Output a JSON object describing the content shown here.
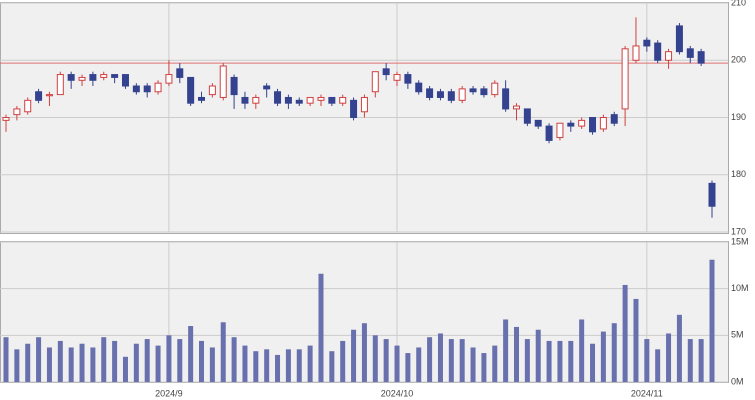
{
  "chart_data": [
    {
      "type": "candlestick",
      "open": [
        189.5,
        190.5,
        191,
        194.5,
        193.8,
        194,
        197.5,
        196.5,
        197.5,
        197,
        197.5,
        197.5,
        195.5,
        195.5,
        194.5,
        196,
        198.5,
        197,
        193.5,
        194,
        193.5,
        197,
        193.5,
        192.5,
        195.5,
        194.5,
        193.5,
        193,
        192.5,
        193,
        193.5,
        192.5,
        193,
        191,
        194.5,
        198.5,
        196.5,
        197.5,
        196,
        195,
        194.5,
        194.5,
        193,
        195,
        195,
        194,
        195,
        191.5,
        191.5,
        189.5,
        188.5,
        186.5,
        189,
        188.5,
        190,
        188,
        190.5,
        191.5,
        200,
        203.5,
        203,
        200,
        206,
        202,
        201.5,
        178.5
      ],
      "high": [
        190.5,
        192,
        193.5,
        195,
        194.5,
        198,
        198,
        197.5,
        198,
        198,
        197.5,
        197.5,
        196,
        196,
        196.5,
        200,
        199.5,
        197,
        194.5,
        196,
        199.5,
        197.5,
        194.5,
        194,
        196,
        195,
        194,
        193.5,
        193.5,
        194,
        193.5,
        194,
        193.5,
        194,
        198,
        199.5,
        198,
        198,
        196.5,
        195.5,
        195,
        195,
        195.5,
        195.5,
        195.5,
        196.5,
        196.5,
        192.5,
        191.5,
        189.5,
        189,
        189,
        189.5,
        190,
        190,
        190.5,
        191,
        202.5,
        207.5,
        204,
        203.5,
        202,
        206.5,
        202.5,
        202,
        179
      ],
      "low": [
        187.5,
        189.5,
        190.5,
        192.5,
        192,
        194,
        195,
        195.5,
        195.5,
        196.5,
        196,
        195,
        194,
        193.5,
        194,
        195.5,
        196,
        192,
        192.5,
        193.5,
        193,
        191.5,
        191.5,
        191.5,
        193.5,
        192,
        191.5,
        192,
        192,
        192,
        192,
        192,
        189.5,
        190,
        193.5,
        196.5,
        195.5,
        195,
        194,
        193,
        193,
        192.5,
        192.5,
        194,
        193.5,
        193.5,
        191,
        189.5,
        188.5,
        188,
        185.5,
        186,
        187.5,
        188,
        187,
        187.5,
        188.5,
        188.5,
        199.5,
        201.5,
        199.5,
        198.5,
        201,
        199.5,
        199,
        172.5
      ],
      "close": [
        190,
        191.5,
        193,
        193,
        194,
        197.5,
        196.5,
        197,
        196.5,
        197.5,
        197,
        195.5,
        194.5,
        194.5,
        196,
        197.5,
        197,
        192.5,
        193,
        195.5,
        199,
        194,
        192.5,
        193.5,
        195,
        192.5,
        192.5,
        192.5,
        193.5,
        193.5,
        192.5,
        193.5,
        190,
        193.5,
        198,
        197.5,
        197.5,
        196,
        194.5,
        193.5,
        193.5,
        193,
        195,
        194.5,
        194,
        196,
        191.5,
        192,
        189,
        188.5,
        186,
        189,
        188.5,
        189.5,
        187.5,
        190,
        189,
        202,
        202.5,
        202.5,
        200,
        201.5,
        201.5,
        200.5,
        199.5,
        174.5
      ],
      "up_color": "#d04040",
      "down_color": "#34428f",
      "reference_line": 199.5,
      "reference_color": "#e07070",
      "ylim": [
        170,
        210
      ],
      "yticks": [
        170,
        180,
        190,
        200,
        210
      ],
      "grid": true
    },
    {
      "type": "bar",
      "categories": [
        null,
        null,
        null,
        null,
        null,
        null,
        null,
        null,
        null,
        null,
        null,
        null,
        null,
        null,
        null,
        "2024/9",
        null,
        null,
        null,
        null,
        null,
        null,
        null,
        null,
        null,
        null,
        null,
        null,
        null,
        null,
        null,
        null,
        null,
        null,
        null,
        null,
        "2024/10",
        null,
        null,
        null,
        null,
        null,
        null,
        null,
        null,
        null,
        null,
        null,
        null,
        null,
        null,
        null,
        null,
        null,
        null,
        null,
        null,
        null,
        null,
        "2024/11",
        null,
        null,
        null,
        null,
        null,
        null
      ],
      "values": [
        4800000,
        3500000,
        4100000,
        4800000,
        3700000,
        4400000,
        3700000,
        4100000,
        3700000,
        4800000,
        4400000,
        2700000,
        4100000,
        4600000,
        3900000,
        5000000,
        4600000,
        6000000,
        4400000,
        3700000,
        6400000,
        4800000,
        3900000,
        3300000,
        3500000,
        2900000,
        3500000,
        3500000,
        3900000,
        11600000,
        3300000,
        4400000,
        5600000,
        6300000,
        5000000,
        4600000,
        3900000,
        3100000,
        3700000,
        4800000,
        5200000,
        4600000,
        4600000,
        3700000,
        3100000,
        3900000,
        6700000,
        5900000,
        4600000,
        5600000,
        4400000,
        4400000,
        4400000,
        6700000,
        4100000,
        5400000,
        6300000,
        10400000,
        8900000,
        4600000,
        3500000,
        5200000,
        7200000,
        4600000,
        4600000,
        13100000
      ],
      "color": "#6870ae",
      "ylim": [
        0,
        15000000
      ],
      "yticks": [
        {
          "value": 0,
          "label": "0M"
        },
        {
          "value": 5000000,
          "label": "5M"
        },
        {
          "value": 10000000,
          "label": "10M"
        },
        {
          "value": 15000000,
          "label": "15M"
        }
      ],
      "grid": true
    }
  ]
}
